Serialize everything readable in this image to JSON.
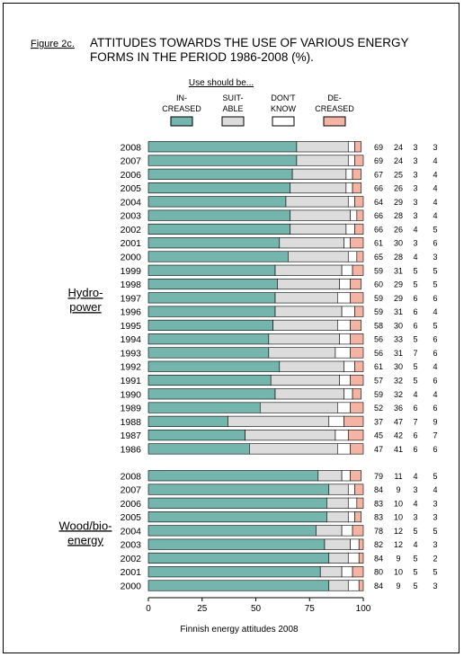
{
  "figure_label": "Figure 2c.",
  "title_line1": "ATTITUDES TOWARDS THE USE OF VARIOUS ENERGY",
  "title_line2": "FORMS IN THE PERIOD 1986-2008 (%).",
  "legend_title": "Use should be...",
  "legend": [
    {
      "line1": "IN-",
      "line2": "CREASED",
      "color": "#74b5ae"
    },
    {
      "line1": "SUIT-",
      "line2": "ABLE",
      "color": "#dcdcdc"
    },
    {
      "line1": "DON'T",
      "line2": "KNOW",
      "color": "#ffffff"
    },
    {
      "line1": "DE-",
      "line2": "CREASED",
      "color": "#f5b3a3"
    }
  ],
  "source": "Finnish energy attitudes 2008",
  "chart_data": {
    "type": "bar",
    "stacked": true,
    "orientation": "horizontal",
    "xlim": [
      0,
      100
    ],
    "xticks": [
      "0",
      "25",
      "50",
      "75",
      "100"
    ],
    "series_names": [
      "IN-CREASED",
      "SUIT-ABLE",
      "DON'T KNOW",
      "DE-CREASED"
    ],
    "groups": [
      {
        "label_line1": "Hydro-",
        "label_line2": "power",
        "years": [
          "2008",
          "2007",
          "2006",
          "2005",
          "2004",
          "2003",
          "2002",
          "2001",
          "2000",
          "1999",
          "1998",
          "1997",
          "1996",
          "1995",
          "1994",
          "1993",
          "1992",
          "1991",
          "1990",
          "1989",
          "1988",
          "1987",
          "1986"
        ],
        "values": [
          [
            69,
            24,
            3,
            3
          ],
          [
            69,
            24,
            3,
            4
          ],
          [
            67,
            25,
            3,
            4
          ],
          [
            66,
            26,
            3,
            4
          ],
          [
            64,
            29,
            3,
            4
          ],
          [
            66,
            28,
            3,
            4
          ],
          [
            66,
            26,
            4,
            5
          ],
          [
            61,
            30,
            3,
            6
          ],
          [
            65,
            28,
            4,
            3
          ],
          [
            59,
            31,
            5,
            5
          ],
          [
            60,
            29,
            5,
            5
          ],
          [
            59,
            29,
            6,
            6
          ],
          [
            59,
            31,
            6,
            4
          ],
          [
            58,
            30,
            6,
            5
          ],
          [
            56,
            33,
            5,
            6
          ],
          [
            56,
            31,
            7,
            6
          ],
          [
            61,
            30,
            5,
            4
          ],
          [
            57,
            32,
            5,
            6
          ],
          [
            59,
            32,
            4,
            4
          ],
          [
            52,
            36,
            6,
            6
          ],
          [
            37,
            47,
            7,
            9
          ],
          [
            45,
            42,
            6,
            7
          ],
          [
            47,
            41,
            6,
            6
          ]
        ]
      },
      {
        "label_line1": "Wood/bio-",
        "label_line2": "energy",
        "years": [
          "2008",
          "2007",
          "2006",
          "2005",
          "2004",
          "2003",
          "2002",
          "2001",
          "2000"
        ],
        "values": [
          [
            79,
            11,
            4,
            5
          ],
          [
            84,
            9,
            3,
            4
          ],
          [
            83,
            10,
            4,
            3
          ],
          [
            83,
            10,
            3,
            3
          ],
          [
            78,
            12,
            5,
            5
          ],
          [
            82,
            12,
            4,
            3
          ],
          [
            84,
            9,
            5,
            2
          ],
          [
            80,
            10,
            5,
            5
          ],
          [
            84,
            9,
            5,
            3
          ]
        ]
      }
    ]
  }
}
